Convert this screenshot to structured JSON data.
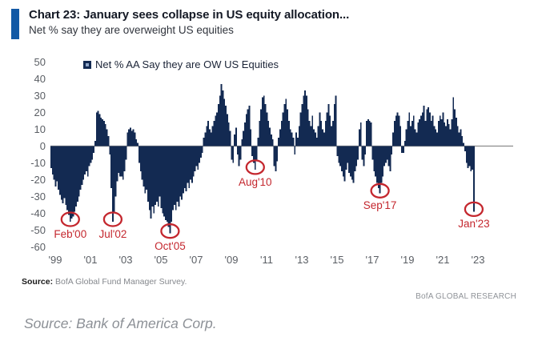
{
  "header": {
    "title": "Chart 23: January sees collapse in US equity allocation...",
    "subtitle": "Net % say they are overweight US equities"
  },
  "legend": {
    "label": "Net % AA Say they are OW US Equities"
  },
  "source_line": {
    "label": "Source:",
    "text": " BofA Global Fund Manager Survey."
  },
  "watermark": "BofA GLOBAL RESEARCH",
  "caption": "Source: Bank of America Corp.",
  "colors": {
    "bar": "#132a52",
    "accent_blue": "#1259a5",
    "annotation_red": "#c4272e",
    "axis_line": "#8c8c8c",
    "tick_text": "#5a5e64"
  },
  "chart_data": {
    "type": "bar",
    "title": "Net % AA Say they are OW US Equities",
    "xlabel": "",
    "ylabel": "Net % say they are overweight US equities",
    "frequency": "monthly",
    "x_start": "1999-01",
    "x_end": "2023-01",
    "ylim": [
      -60,
      50
    ],
    "grid": false,
    "legend_position": "top",
    "y_ticks": [
      50,
      40,
      30,
      20,
      10,
      0,
      -10,
      -20,
      -30,
      -40,
      -50,
      -60
    ],
    "x_tick_labels": [
      "'99",
      "'01",
      "'03",
      "'05",
      "'07",
      "'09",
      "'11",
      "'13",
      "'15",
      "'17",
      "'19",
      "'21",
      "'23"
    ],
    "values": [
      -13,
      -17,
      -20,
      -24,
      -21,
      -26,
      -29,
      -32,
      -34,
      -31,
      -35,
      -38,
      -41,
      -45,
      -43,
      -42,
      -39,
      -36,
      -33,
      -30,
      -26,
      -23,
      -20,
      -17,
      -15,
      -18,
      -12,
      -10,
      -8,
      -4,
      3,
      20,
      21,
      19,
      17,
      16,
      15,
      13,
      10,
      6,
      -5,
      -25,
      -45,
      -40,
      -30,
      -21,
      -16,
      -18,
      -18,
      -20,
      -15,
      -8,
      8,
      10,
      11,
      9,
      10,
      8,
      4,
      2,
      -10,
      -15,
      -20,
      -24,
      -28,
      -26,
      -33,
      -38,
      -43,
      -36,
      -40,
      -35,
      -33,
      -36,
      -30,
      -37,
      -40,
      -42,
      -44,
      -45,
      -48,
      -52,
      -45,
      -38,
      -35,
      -38,
      -33,
      -36,
      -30,
      -32,
      -28,
      -25,
      -27,
      -22,
      -25,
      -20,
      -22,
      -18,
      -15,
      -12,
      -14,
      -10,
      -7,
      -4,
      5,
      8,
      12,
      15,
      10,
      8,
      12,
      15,
      18,
      20,
      25,
      30,
      37,
      33,
      28,
      24,
      19,
      14,
      9,
      -8,
      -10,
      7,
      11,
      -5,
      -12,
      -8,
      4,
      9,
      14,
      19,
      22,
      24,
      10,
      -6,
      -10,
      -14,
      -8,
      5,
      15,
      22,
      29,
      30,
      25,
      20,
      15,
      11,
      7,
      4,
      -12,
      -15,
      -9,
      5,
      10,
      15,
      20,
      25,
      28,
      22,
      15,
      10,
      8,
      5,
      -5,
      8,
      5,
      12,
      20,
      25,
      30,
      33,
      30,
      22,
      15,
      12,
      18,
      10,
      8,
      5,
      12,
      20,
      15,
      10,
      8,
      15,
      20,
      25,
      18,
      12,
      15,
      25,
      30,
      -6,
      -10,
      -12,
      -15,
      -18,
      -21,
      -14,
      -10,
      -16,
      -18,
      -20,
      -22,
      -15,
      -12,
      -8,
      10,
      14,
      -8,
      -12,
      -5,
      15,
      16,
      15,
      14,
      -8,
      -15,
      -18,
      -22,
      -25,
      -28,
      -22,
      -18,
      -12,
      -10,
      -8,
      -12,
      -15,
      -5,
      8,
      15,
      18,
      20,
      18,
      12,
      -4,
      -4,
      3,
      10,
      15,
      20,
      12,
      15,
      18,
      10,
      8,
      14,
      16,
      18,
      20,
      24,
      15,
      22,
      23,
      20,
      15,
      18,
      12,
      10,
      8,
      15,
      18,
      16,
      20,
      14,
      12,
      16,
      13,
      10,
      16,
      29,
      22,
      17,
      12,
      8,
      10,
      6,
      2,
      -3,
      -10,
      -13,
      -12,
      -15,
      -14,
      -39
    ],
    "annotations": [
      {
        "label": "Feb'00",
        "month_index": 13,
        "value": -45
      },
      {
        "label": "Jul'02",
        "month_index": 42,
        "value": -45
      },
      {
        "label": "Oct'05",
        "month_index": 81,
        "value": -52
      },
      {
        "label": "Aug'10",
        "month_index": 139,
        "value": -14
      },
      {
        "label": "Sep'17",
        "month_index": 224,
        "value": -28
      },
      {
        "label": "Jan'23",
        "month_index": 288,
        "value": -39
      }
    ]
  }
}
